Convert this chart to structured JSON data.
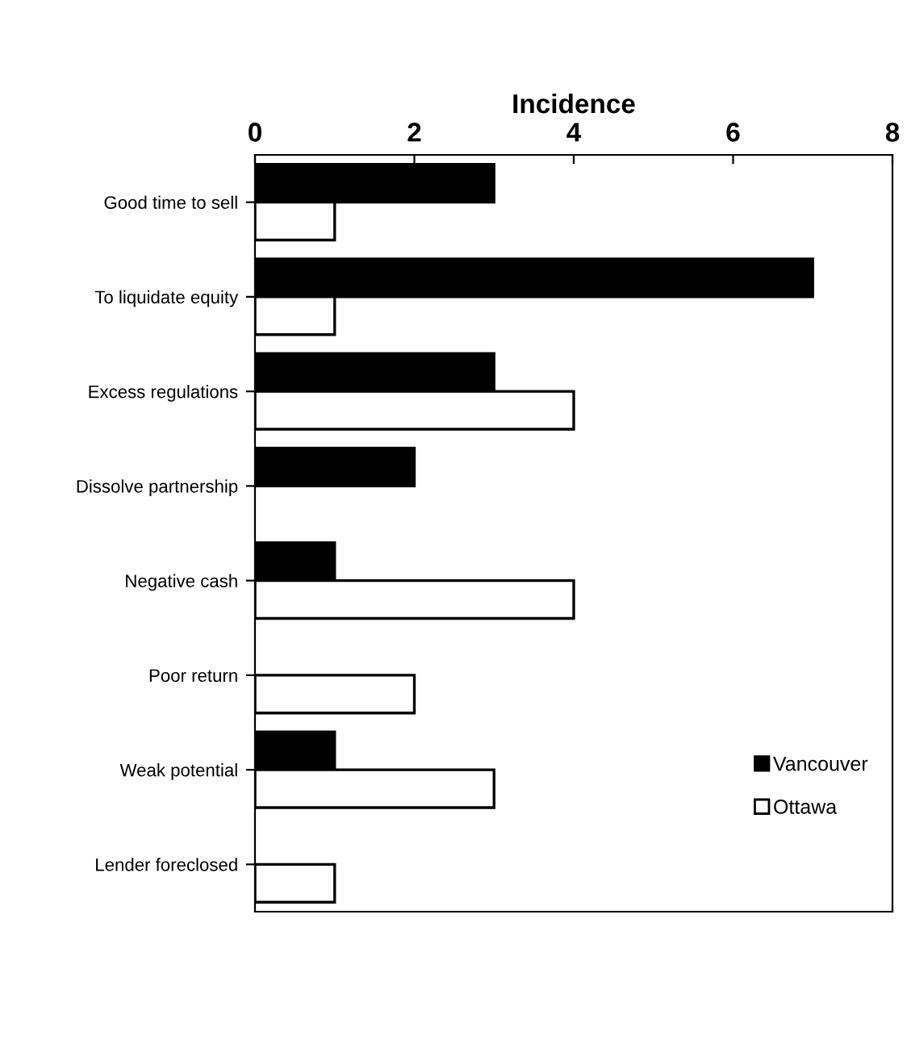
{
  "chart_data": {
    "type": "bar",
    "orientation": "horizontal",
    "xlabel": "Incidence",
    "categories": [
      "Good time to sell",
      "To liquidate equity",
      "Excess regulations",
      "Dissolve partnership",
      "Negative cash",
      "Poor return",
      "Weak potential",
      "Lender foreclosed"
    ],
    "series": [
      {
        "name": "Vancouver",
        "color": "#000000",
        "values": [
          3,
          7,
          3,
          2,
          1,
          null,
          1,
          null
        ]
      },
      {
        "name": "Ottawa",
        "color": "#ffffff",
        "values": [
          1,
          1,
          4,
          null,
          4,
          2,
          3,
          1
        ]
      }
    ],
    "xlim": [
      0,
      8
    ],
    "xticks": [
      0,
      2,
      4,
      6,
      8
    ],
    "grid": false,
    "legend": "bottom right"
  }
}
